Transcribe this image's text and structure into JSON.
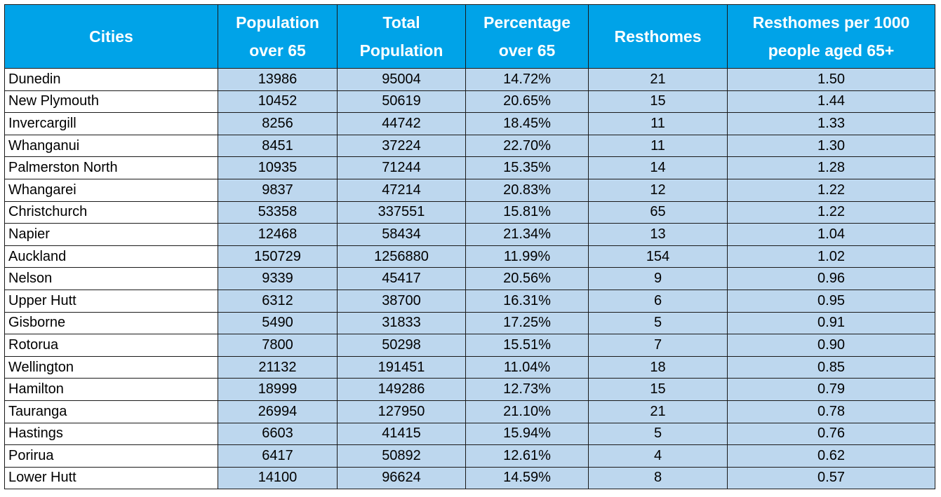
{
  "table": {
    "headers": [
      "Cities",
      "Population\nover 65",
      "Total\nPopulation",
      "Percentage\nover 65",
      "Resthomes",
      "Resthomes per 1000\npeople aged 65+"
    ],
    "rows": [
      [
        "Dunedin",
        "13986",
        "95004",
        "14.72%",
        "21",
        "1.50"
      ],
      [
        "New Plymouth",
        "10452",
        "50619",
        "20.65%",
        "15",
        "1.44"
      ],
      [
        "Invercargill",
        "8256",
        "44742",
        "18.45%",
        "11",
        "1.33"
      ],
      [
        "Whanganui",
        "8451",
        "37224",
        "22.70%",
        "11",
        "1.30"
      ],
      [
        "Palmerston North",
        "10935",
        "71244",
        "15.35%",
        "14",
        "1.28"
      ],
      [
        "Whangarei",
        "9837",
        "47214",
        "20.83%",
        "12",
        "1.22"
      ],
      [
        "Christchurch",
        "53358",
        "337551",
        "15.81%",
        "65",
        "1.22"
      ],
      [
        "Napier",
        "12468",
        "58434",
        "21.34%",
        "13",
        "1.04"
      ],
      [
        "Auckland",
        "150729",
        "1256880",
        "11.99%",
        "154",
        "1.02"
      ],
      [
        "Nelson",
        "9339",
        "45417",
        "20.56%",
        "9",
        "0.96"
      ],
      [
        "Upper Hutt",
        "6312",
        "38700",
        "16.31%",
        "6",
        "0.95"
      ],
      [
        "Gisborne",
        "5490",
        "31833",
        "17.25%",
        "5",
        "0.91"
      ],
      [
        "Rotorua",
        "7800",
        "50298",
        "15.51%",
        "7",
        "0.90"
      ],
      [
        "Wellington",
        "21132",
        "191451",
        "11.04%",
        "18",
        "0.85"
      ],
      [
        "Hamilton",
        "18999",
        "149286",
        "12.73%",
        "15",
        "0.79"
      ],
      [
        "Tauranga",
        "26994",
        "127950",
        "21.10%",
        "21",
        "0.78"
      ],
      [
        "Hastings",
        "6603",
        "41415",
        "15.94%",
        "5",
        "0.76"
      ],
      [
        "Porirua",
        "6417",
        "50892",
        "12.61%",
        "4",
        "0.62"
      ],
      [
        "Lower Hutt",
        "14100",
        "96624",
        "14.59%",
        "8",
        "0.57"
      ]
    ]
  },
  "colors": {
    "header_bg": "#00a3e8",
    "header_text": "#ffffff",
    "data_bg": "#bdd7ee",
    "city_bg": "#ffffff",
    "border": "#1a1a1a"
  }
}
